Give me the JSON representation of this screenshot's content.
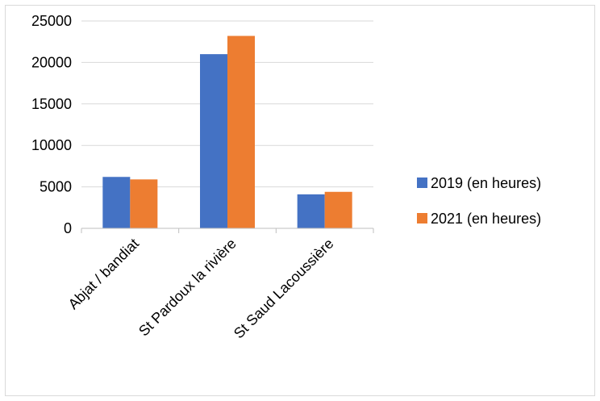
{
  "chart_data": {
    "type": "bar",
    "title": "",
    "xlabel": "",
    "ylabel": "",
    "categories": [
      "Abjat / bandiat",
      "St Pardoux la rivière",
      "St Saud Lacoussière"
    ],
    "series": [
      {
        "name": "2019 (en heures)",
        "color": "#4472C4",
        "values": [
          6200,
          21000,
          4100
        ]
      },
      {
        "name": "2021 (en heures)",
        "color": "#ED7D31",
        "values": [
          5900,
          23200,
          4400
        ]
      }
    ],
    "ylim": [
      0,
      25000
    ],
    "yticks": [
      "0",
      "5000",
      "10000",
      "15000",
      "20000",
      "25000"
    ],
    "grid": true,
    "legend_position": "right"
  }
}
